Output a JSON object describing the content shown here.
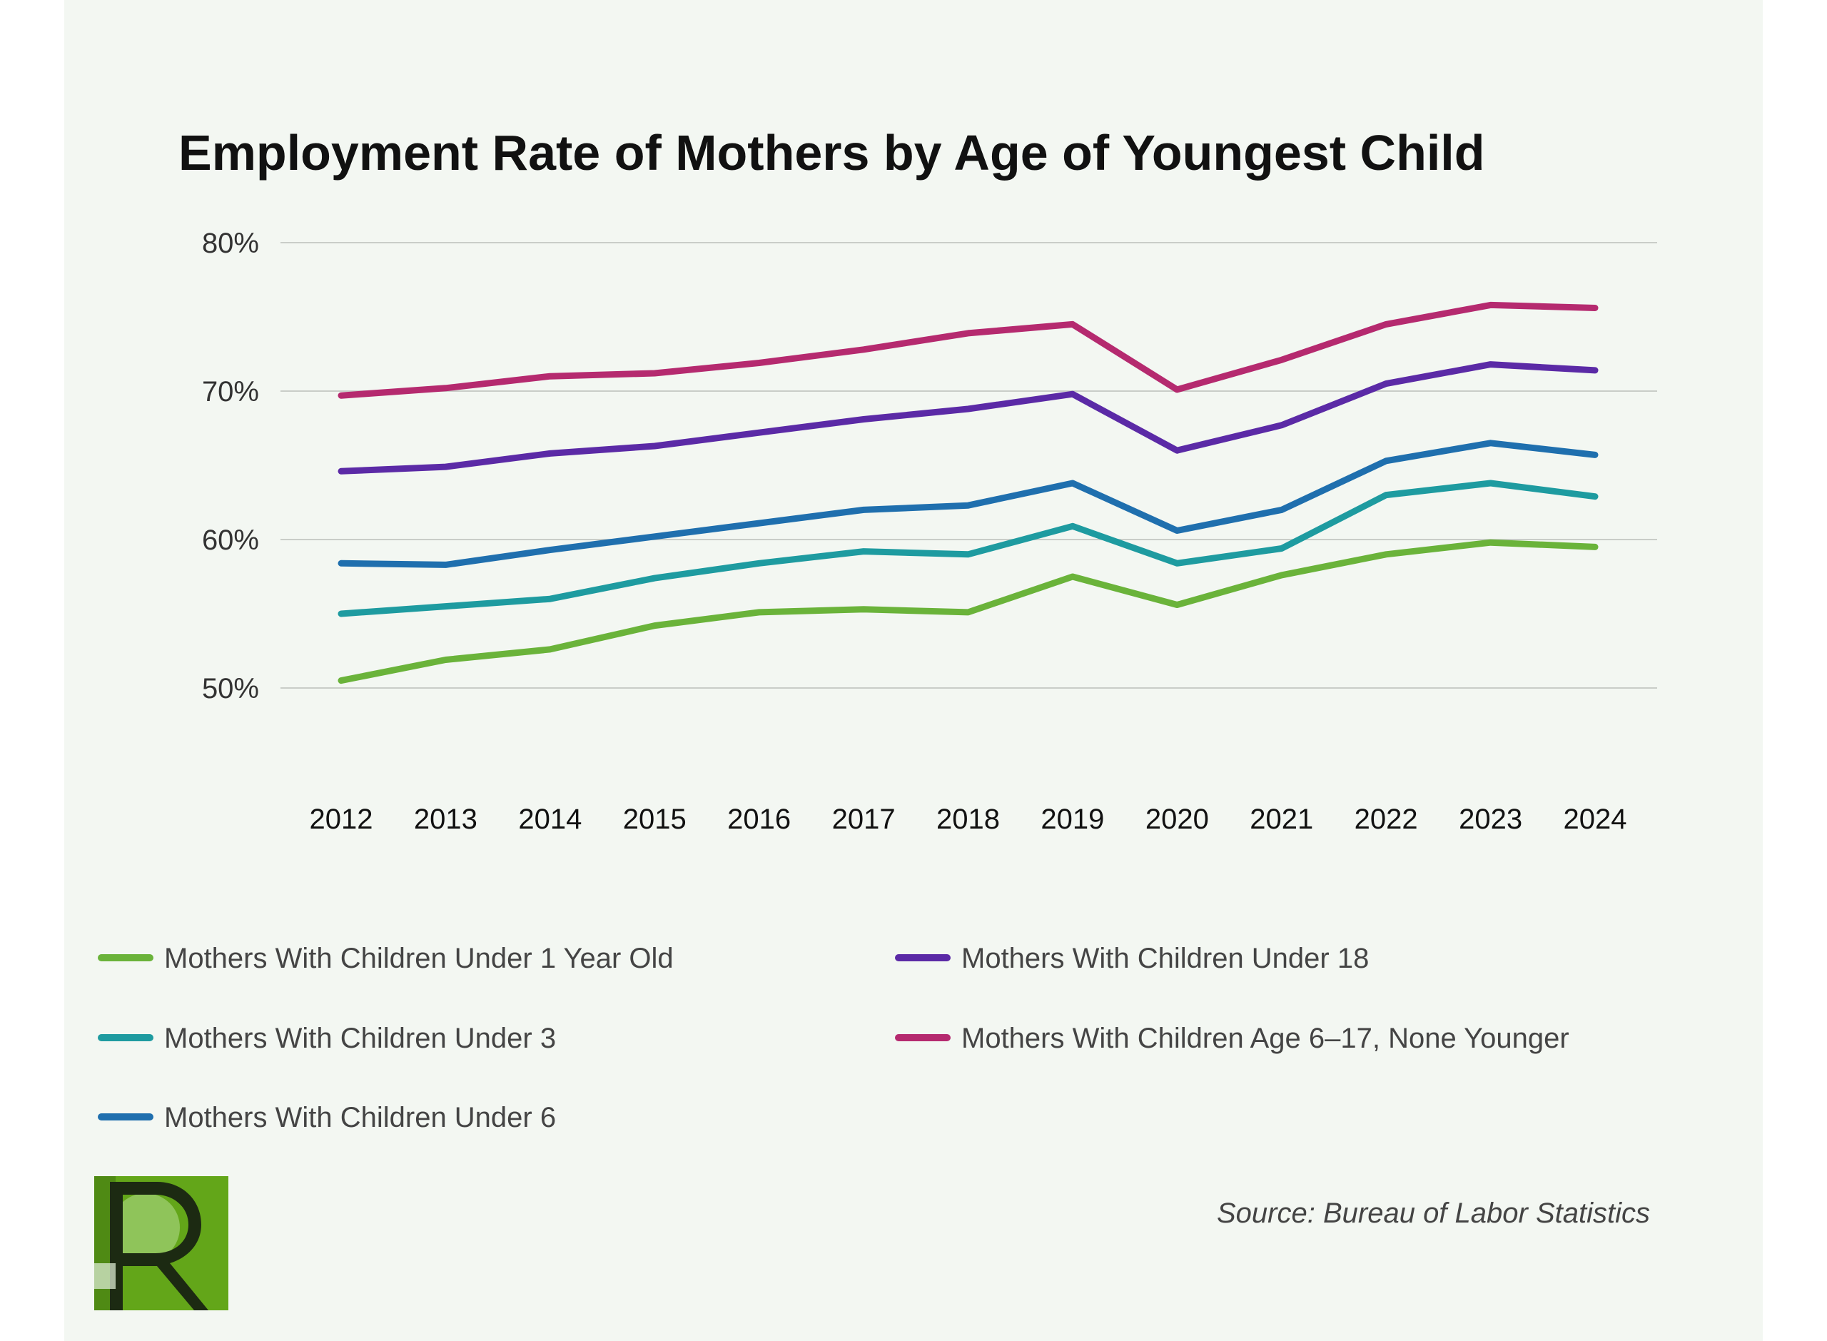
{
  "chart_data": {
    "type": "line",
    "title": "Employment Rate of Mothers by Age of Youngest Child",
    "xlabel": "",
    "ylabel": "",
    "x": [
      "2012",
      "2013",
      "2014",
      "2015",
      "2016",
      "2017",
      "2018",
      "2019",
      "2020",
      "2021",
      "2022",
      "2023",
      "2024"
    ],
    "ylim": [
      50,
      80
    ],
    "yticks": [
      {
        "value": 50,
        "label": "50%"
      },
      {
        "value": 60,
        "label": "60%"
      },
      {
        "value": 70,
        "label": "70%"
      },
      {
        "value": 80,
        "label": "80%"
      }
    ],
    "grid": true,
    "legend_position": "bottom",
    "series": [
      {
        "name": "Mothers With Children Under 1 Year Old",
        "color": "#6ab33a",
        "values": [
          50.5,
          51.9,
          52.6,
          54.2,
          55.1,
          55.3,
          55.1,
          57.5,
          55.6,
          57.6,
          59.0,
          59.8,
          59.5
        ]
      },
      {
        "name": "Mothers With Children Under 3",
        "color": "#1e9ba0",
        "values": [
          55.0,
          55.5,
          56.0,
          57.4,
          58.4,
          59.2,
          59.0,
          60.9,
          58.4,
          59.4,
          63.0,
          63.8,
          62.9
        ]
      },
      {
        "name": "Mothers With Children Under 6",
        "color": "#1f6fae",
        "values": [
          58.4,
          58.3,
          59.3,
          60.2,
          61.1,
          62.0,
          62.3,
          63.8,
          60.6,
          62.0,
          65.3,
          66.5,
          65.7
        ]
      },
      {
        "name": "Mothers With Children Under 18",
        "color": "#5b2aa6",
        "values": [
          64.6,
          64.9,
          65.8,
          66.3,
          67.2,
          68.1,
          68.8,
          69.8,
          66.0,
          67.7,
          70.5,
          71.8,
          71.4
        ]
      },
      {
        "name": "Mothers With Children Age 6–17, None Younger",
        "color": "#b52a6f",
        "values": [
          69.7,
          70.2,
          71.0,
          71.2,
          71.9,
          72.8,
          73.9,
          74.5,
          70.1,
          72.1,
          74.5,
          75.8,
          75.6
        ]
      }
    ],
    "source": "Source: Bureau of Labor Statistics"
  },
  "logo": {
    "letter": "R",
    "bg_color": "#63a619",
    "fg_color": "#1c2a12"
  }
}
